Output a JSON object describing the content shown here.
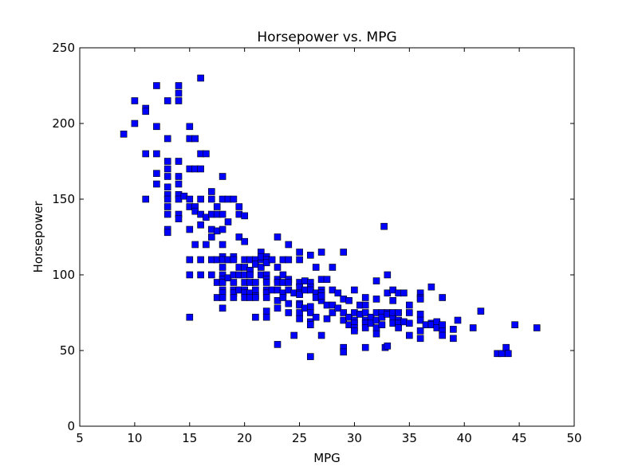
{
  "chart_data": {
    "type": "scatter",
    "title": "Horsepower vs. MPG",
    "xlabel": "MPG",
    "ylabel": "Horsepower",
    "xlim": [
      5,
      50
    ],
    "ylim": [
      0,
      250
    ],
    "xticks": [
      5,
      10,
      15,
      20,
      25,
      30,
      35,
      40,
      45,
      50
    ],
    "yticks": [
      0,
      50,
      100,
      150,
      200,
      250
    ],
    "grid": false,
    "marker": "square",
    "marker_color": "#0000ff",
    "points": [
      [
        9,
        193
      ],
      [
        10,
        215
      ],
      [
        10,
        200
      ],
      [
        11,
        210
      ],
      [
        11,
        208
      ],
      [
        11,
        180
      ],
      [
        11,
        150
      ],
      [
        12,
        225
      ],
      [
        12,
        198
      ],
      [
        12,
        180
      ],
      [
        12,
        167
      ],
      [
        12,
        160
      ],
      [
        13,
        215
      ],
      [
        13,
        190
      ],
      [
        13,
        175
      ],
      [
        13,
        170
      ],
      [
        13,
        165
      ],
      [
        13,
        158
      ],
      [
        13,
        153
      ],
      [
        13,
        150
      ],
      [
        13,
        145
      ],
      [
        13,
        140
      ],
      [
        13,
        130
      ],
      [
        13,
        128
      ],
      [
        14,
        225
      ],
      [
        14,
        220
      ],
      [
        14,
        215
      ],
      [
        14,
        175
      ],
      [
        14,
        165
      ],
      [
        14,
        160
      ],
      [
        14,
        153
      ],
      [
        14,
        150
      ],
      [
        14,
        140
      ],
      [
        14,
        137
      ],
      [
        14.5,
        152
      ],
      [
        15,
        198
      ],
      [
        15,
        190
      ],
      [
        15,
        170
      ],
      [
        15,
        150
      ],
      [
        15,
        145
      ],
      [
        15,
        130
      ],
      [
        15,
        110
      ],
      [
        15,
        100
      ],
      [
        15,
        72
      ],
      [
        15.5,
        190
      ],
      [
        15.5,
        170
      ],
      [
        15.5,
        145
      ],
      [
        15.5,
        142
      ],
      [
        15.5,
        120
      ],
      [
        16,
        230
      ],
      [
        16,
        180
      ],
      [
        16,
        170
      ],
      [
        16,
        150
      ],
      [
        16,
        140
      ],
      [
        16,
        133
      ],
      [
        16,
        110
      ],
      [
        16,
        100
      ],
      [
        16.5,
        180
      ],
      [
        16.5,
        138
      ],
      [
        16.5,
        120
      ],
      [
        17,
        155
      ],
      [
        17,
        150
      ],
      [
        17,
        140
      ],
      [
        17,
        130
      ],
      [
        17,
        125
      ],
      [
        17,
        110
      ],
      [
        17,
        100
      ],
      [
        17.5,
        145
      ],
      [
        17.5,
        140
      ],
      [
        17.5,
        129
      ],
      [
        17.5,
        110
      ],
      [
        17.5,
        95
      ],
      [
        17.5,
        85
      ],
      [
        18,
        165
      ],
      [
        18,
        150
      ],
      [
        18,
        140
      ],
      [
        18,
        130
      ],
      [
        18,
        120
      ],
      [
        18,
        112
      ],
      [
        18,
        110
      ],
      [
        18,
        105
      ],
      [
        18,
        100
      ],
      [
        18,
        97
      ],
      [
        18,
        95
      ],
      [
        18,
        90
      ],
      [
        18,
        88
      ],
      [
        18,
        85
      ],
      [
        18,
        78
      ],
      [
        18.5,
        150
      ],
      [
        18.5,
        135
      ],
      [
        18.5,
        110
      ],
      [
        18.5,
        98
      ],
      [
        19,
        150
      ],
      [
        19,
        112
      ],
      [
        19,
        110
      ],
      [
        19,
        100
      ],
      [
        19,
        95
      ],
      [
        19,
        90
      ],
      [
        19,
        88
      ],
      [
        19,
        85
      ],
      [
        19.5,
        145
      ],
      [
        19.5,
        125
      ],
      [
        19.5,
        140
      ],
      [
        19.5,
        105
      ],
      [
        19.5,
        100
      ],
      [
        19.5,
        90
      ],
      [
        20,
        139
      ],
      [
        20,
        122
      ],
      [
        20,
        110
      ],
      [
        20,
        105
      ],
      [
        20,
        100
      ],
      [
        20,
        95
      ],
      [
        20,
        90
      ],
      [
        20,
        88
      ],
      [
        20,
        85
      ],
      [
        20.5,
        110
      ],
      [
        20.5,
        103
      ],
      [
        20.5,
        100
      ],
      [
        20.5,
        95
      ],
      [
        20.5,
        88
      ],
      [
        20.5,
        85
      ],
      [
        21,
        110
      ],
      [
        21,
        107
      ],
      [
        21,
        95
      ],
      [
        21,
        90
      ],
      [
        21,
        86
      ],
      [
        21,
        85
      ],
      [
        21,
        72
      ],
      [
        21.5,
        115
      ],
      [
        21.5,
        110
      ],
      [
        21.5,
        112
      ],
      [
        21.5,
        105
      ],
      [
        21.5,
        100
      ],
      [
        22,
        112
      ],
      [
        22,
        110
      ],
      [
        22,
        108
      ],
      [
        22,
        100
      ],
      [
        22,
        97
      ],
      [
        22,
        95
      ],
      [
        22,
        90
      ],
      [
        22,
        88
      ],
      [
        22,
        85
      ],
      [
        22,
        76
      ],
      [
        22,
        72
      ],
      [
        22.5,
        110
      ],
      [
        22.5,
        90
      ],
      [
        23,
        125
      ],
      [
        23,
        105
      ],
      [
        23,
        97
      ],
      [
        23,
        95
      ],
      [
        23,
        90
      ],
      [
        23,
        83
      ],
      [
        23,
        78
      ],
      [
        23,
        54
      ],
      [
        23.5,
        110
      ],
      [
        23.5,
        100
      ],
      [
        23.5,
        95
      ],
      [
        23.5,
        88
      ],
      [
        23.5,
        85
      ],
      [
        24,
        120
      ],
      [
        24,
        110
      ],
      [
        24,
        97
      ],
      [
        24,
        95
      ],
      [
        24,
        90
      ],
      [
        24,
        81
      ],
      [
        24,
        75
      ],
      [
        24.5,
        88
      ],
      [
        24.5,
        60
      ],
      [
        25,
        115
      ],
      [
        25,
        110
      ],
      [
        25,
        95
      ],
      [
        25,
        92
      ],
      [
        25,
        88
      ],
      [
        25,
        87
      ],
      [
        25,
        81
      ],
      [
        25,
        80
      ],
      [
        25,
        75
      ],
      [
        25,
        71
      ],
      [
        25.5,
        96
      ],
      [
        25.5,
        90
      ],
      [
        25.5,
        78
      ],
      [
        26,
        113
      ],
      [
        26,
        95
      ],
      [
        26,
        92
      ],
      [
        26,
        90
      ],
      [
        26,
        79
      ],
      [
        26,
        75
      ],
      [
        26,
        69
      ],
      [
        26,
        67
      ],
      [
        26,
        46
      ],
      [
        26.5,
        105
      ],
      [
        26.5,
        88
      ],
      [
        26.5,
        85
      ],
      [
        26.5,
        72
      ],
      [
        27,
        115
      ],
      [
        27,
        97
      ],
      [
        27,
        90
      ],
      [
        27,
        88
      ],
      [
        27,
        85
      ],
      [
        27,
        83
      ],
      [
        27,
        86
      ],
      [
        27,
        60
      ],
      [
        27.5,
        97
      ],
      [
        27.5,
        80
      ],
      [
        27.5,
        71
      ],
      [
        28,
        105
      ],
      [
        28,
        90
      ],
      [
        28,
        80
      ],
      [
        28,
        75
      ],
      [
        28.5,
        88
      ],
      [
        28.5,
        78
      ],
      [
        29,
        115
      ],
      [
        29,
        84
      ],
      [
        29,
        75
      ],
      [
        29,
        70
      ],
      [
        29,
        52
      ],
      [
        29,
        49
      ],
      [
        29.5,
        83
      ],
      [
        29.5,
        72
      ],
      [
        29.5,
        67
      ],
      [
        30,
        90
      ],
      [
        30,
        75
      ],
      [
        30,
        70
      ],
      [
        30,
        68
      ],
      [
        30,
        65
      ],
      [
        30,
        63
      ],
      [
        30.5,
        80
      ],
      [
        30.5,
        74
      ],
      [
        31,
        85
      ],
      [
        31,
        80
      ],
      [
        31,
        75
      ],
      [
        31,
        70
      ],
      [
        31,
        68
      ],
      [
        31,
        65
      ],
      [
        31,
        52
      ],
      [
        31.5,
        72
      ],
      [
        31.5,
        68
      ],
      [
        32,
        96
      ],
      [
        32,
        84
      ],
      [
        32,
        75
      ],
      [
        32,
        70
      ],
      [
        32,
        65
      ],
      [
        32,
        61
      ],
      [
        32.5,
        75
      ],
      [
        32.5,
        72
      ],
      [
        32.5,
        67
      ],
      [
        32.7,
        132
      ],
      [
        32.8,
        52
      ],
      [
        33,
        100
      ],
      [
        33,
        88
      ],
      [
        33,
        75
      ],
      [
        33,
        74
      ],
      [
        33,
        53
      ],
      [
        33.5,
        90
      ],
      [
        33.5,
        83
      ],
      [
        33.5,
        75
      ],
      [
        33.5,
        71
      ],
      [
        33.5,
        68
      ],
      [
        34,
        88
      ],
      [
        34,
        75
      ],
      [
        34,
        70
      ],
      [
        34,
        68
      ],
      [
        34,
        65
      ],
      [
        34.5,
        88
      ],
      [
        34.5,
        69
      ],
      [
        35,
        80
      ],
      [
        35,
        75
      ],
      [
        35,
        68
      ],
      [
        35,
        60
      ],
      [
        36,
        88
      ],
      [
        36,
        85
      ],
      [
        36,
        84
      ],
      [
        36,
        74
      ],
      [
        36,
        70
      ],
      [
        36,
        63
      ],
      [
        36,
        58
      ],
      [
        36.5,
        67
      ],
      [
        37,
        92
      ],
      [
        37,
        68
      ],
      [
        37,
        67
      ],
      [
        37.5,
        69
      ],
      [
        37.5,
        65
      ],
      [
        38,
        85
      ],
      [
        38,
        67
      ],
      [
        38,
        63
      ],
      [
        38,
        60
      ],
      [
        39,
        64
      ],
      [
        39,
        58
      ],
      [
        39.4,
        70
      ],
      [
        40.8,
        65
      ],
      [
        41.5,
        76
      ],
      [
        43,
        48
      ],
      [
        43.4,
        48
      ],
      [
        43.8,
        52
      ],
      [
        44,
        48
      ],
      [
        44.6,
        67
      ],
      [
        46.6,
        65
      ]
    ]
  }
}
